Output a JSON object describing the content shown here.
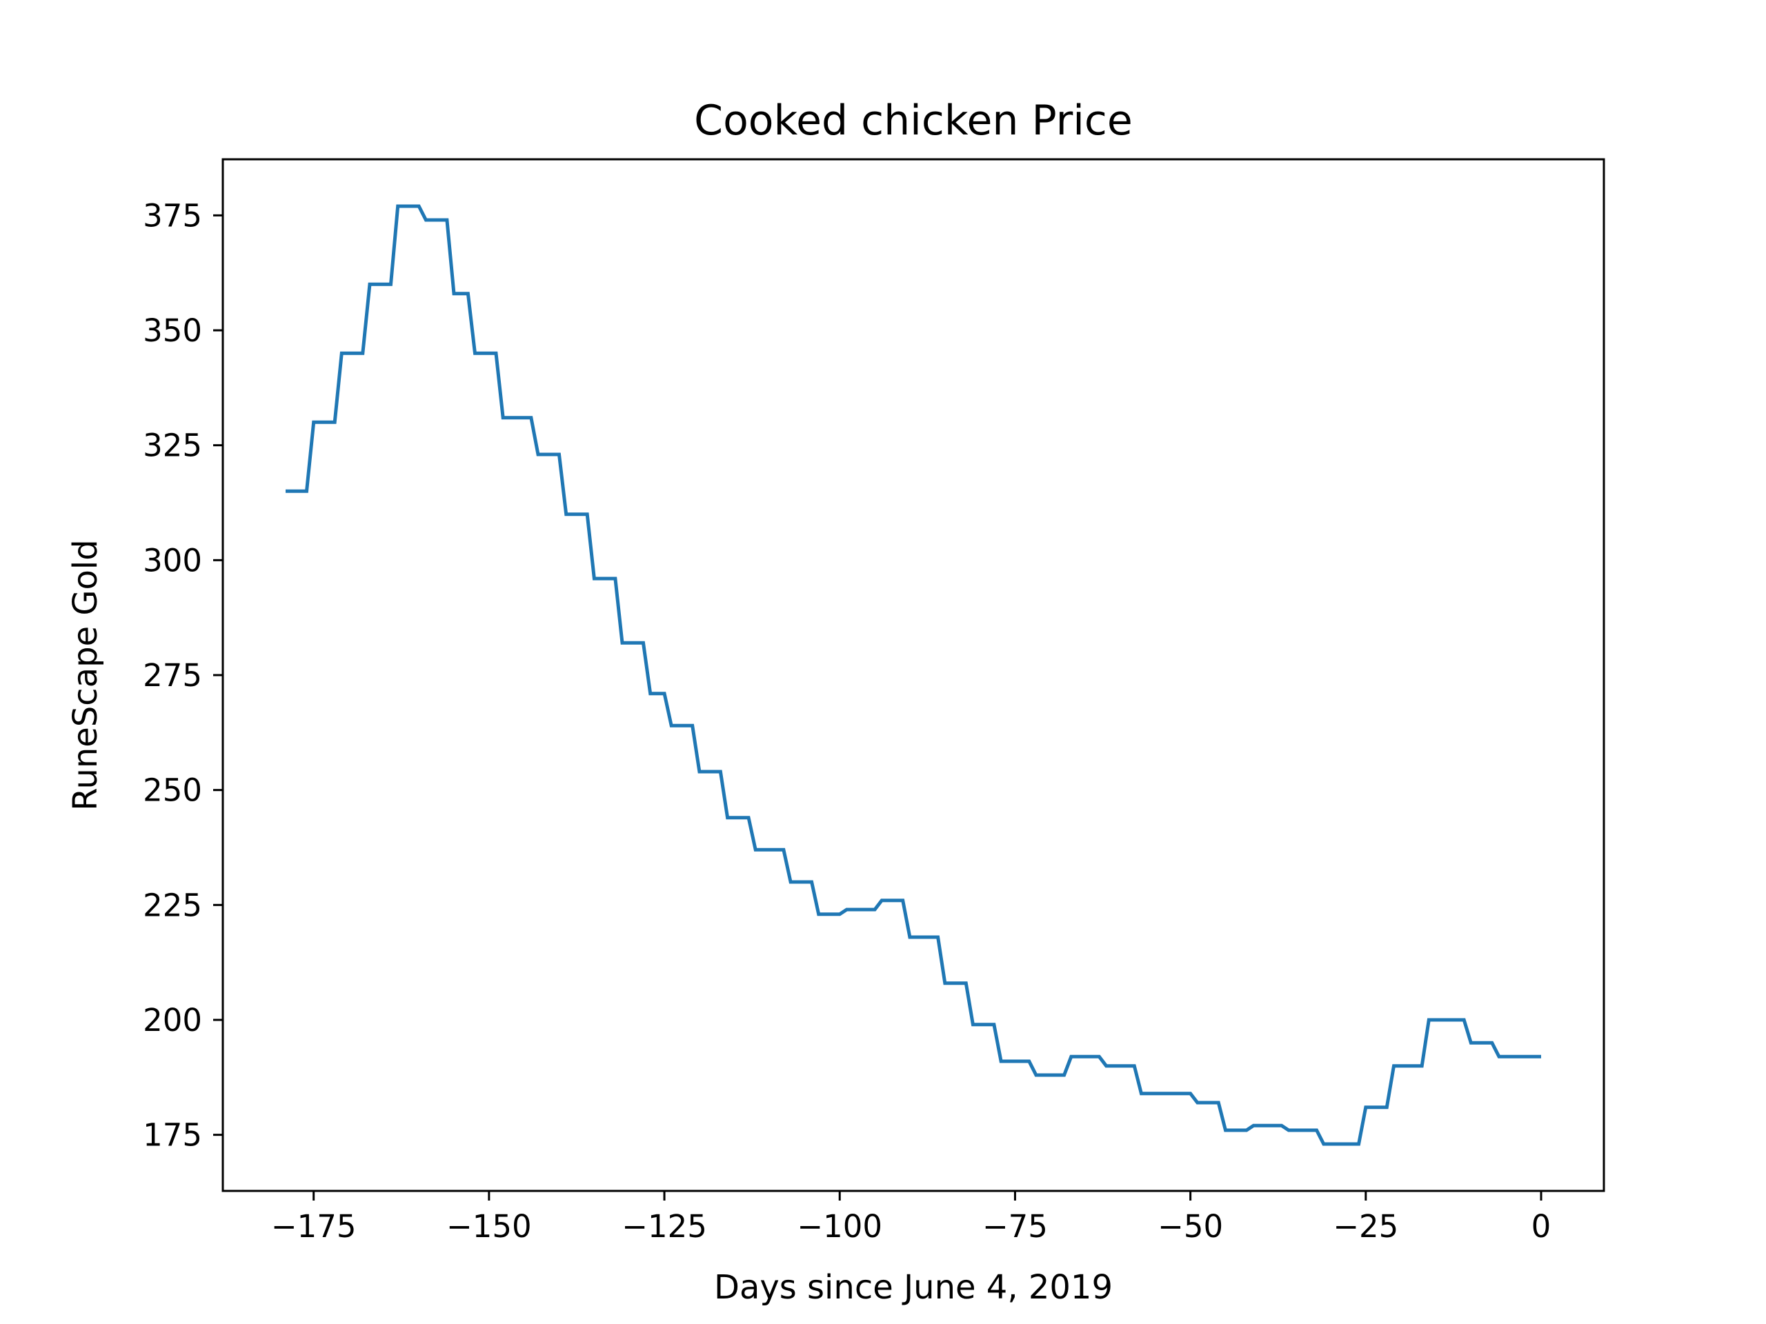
{
  "chart_data": {
    "type": "line",
    "title": "Cooked chicken Price",
    "xlabel": "Days since June 4, 2019",
    "ylabel": "RuneScape Gold",
    "xlim": [
      -187.95,
      8.95
    ],
    "ylim": [
      162.8,
      387.2
    ],
    "xticks": [
      -175,
      -150,
      -125,
      -100,
      -75,
      -50,
      -25,
      0
    ],
    "xtick_labels": [
      "−175",
      "−150",
      "−125",
      "−100",
      "−75",
      "−50",
      "−25",
      "0"
    ],
    "yticks": [
      175,
      200,
      225,
      250,
      275,
      300,
      325,
      350,
      375
    ],
    "ytick_labels": [
      "175",
      "200",
      "225",
      "250",
      "275",
      "300",
      "325",
      "350",
      "375"
    ],
    "grid": false,
    "line_color": "#1f77b4",
    "series": [
      {
        "x": [
          -179,
          -176,
          -175,
          -172,
          -171,
          -168,
          -167,
          -164,
          -163,
          -160,
          -159,
          -156,
          -155,
          -153,
          -152,
          -149,
          -148,
          -144,
          -143,
          -140,
          -139,
          -136,
          -135,
          -132,
          -131,
          -128,
          -127,
          -125,
          -124,
          -121,
          -120,
          -117,
          -116,
          -113,
          -112,
          -108,
          -107,
          -104,
          -103,
          -100,
          -99,
          -95,
          -94,
          -91,
          -90,
          -86,
          -85,
          -82,
          -81,
          -78,
          -77,
          -73,
          -72,
          -68,
          -67,
          -63,
          -62,
          -58,
          -57,
          -50,
          -49,
          -46,
          -45,
          -42,
          -41,
          -37,
          -36,
          -32,
          -31,
          -26,
          -25,
          -22,
          -21,
          -17,
          -16,
          -11,
          -10,
          -7,
          -6,
          -3,
          -2,
          0
        ],
        "y": [
          315,
          315,
          330,
          330,
          345,
          345,
          360,
          360,
          377,
          377,
          374,
          374,
          358,
          358,
          345,
          345,
          331,
          331,
          323,
          323,
          310,
          310,
          296,
          296,
          282,
          282,
          271,
          271,
          264,
          264,
          254,
          254,
          244,
          244,
          237,
          237,
          230,
          230,
          223,
          223,
          224,
          224,
          226,
          226,
          218,
          218,
          208,
          208,
          199,
          199,
          191,
          191,
          188,
          188,
          192,
          192,
          190,
          190,
          184,
          184,
          182,
          182,
          176,
          176,
          177,
          177,
          176,
          176,
          173,
          173,
          181,
          181,
          190,
          190,
          200,
          200,
          195,
          195,
          192,
          192,
          192,
          192
        ]
      }
    ]
  }
}
